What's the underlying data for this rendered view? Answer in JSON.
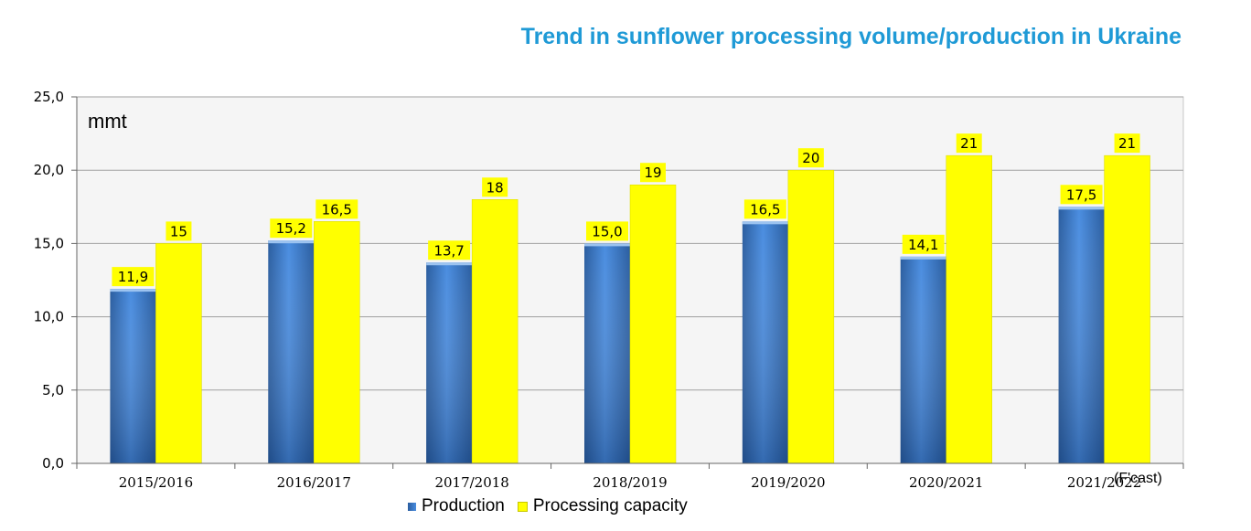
{
  "chart_data": {
    "type": "bar",
    "title": "Trend in sunflower processing volume/production in Ukraine",
    "unit_label": "mmt",
    "categories": [
      "2015/2016",
      "2016/2017",
      "2017/2018",
      "2018/2019",
      "2019/2020",
      "2020/2021",
      "2021/2022"
    ],
    "forecast_note": "(F'cast)",
    "series": [
      {
        "name": "Production",
        "color": "#3f7fcf",
        "values": [
          11.9,
          15.2,
          13.7,
          15.0,
          16.5,
          14.1,
          17.5
        ],
        "labels": [
          "11,9",
          "15,2",
          "13,7",
          "15,0",
          "16,5",
          "14,1",
          "17,5"
        ]
      },
      {
        "name": "Processing capacity",
        "color": "#ffff00",
        "values": [
          15,
          16.5,
          18,
          19,
          20,
          21,
          21
        ],
        "labels": [
          "15",
          "16,5",
          "18",
          "19",
          "20",
          "21",
          "21"
        ]
      }
    ],
    "ylim": [
      0,
      25
    ],
    "yticks": [
      0,
      5,
      10,
      15,
      20,
      25
    ],
    "ytick_labels": [
      "0,0",
      "5,0",
      "10,0",
      "15,0",
      "20,0",
      "25,0"
    ],
    "grid": true,
    "legend": "bottom"
  }
}
